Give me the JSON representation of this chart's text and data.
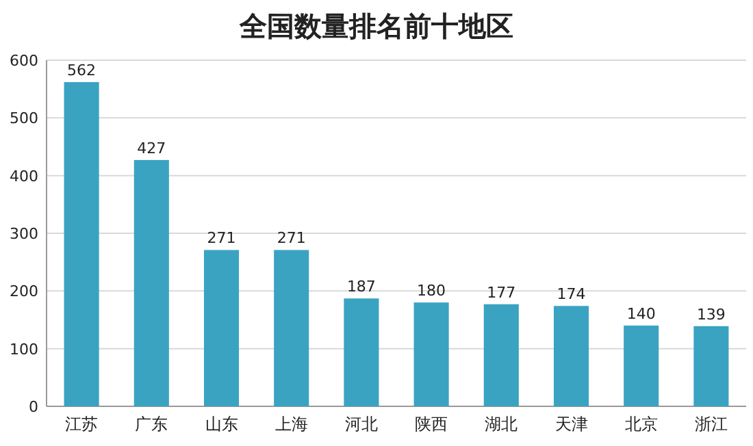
{
  "chart_data": {
    "type": "bar",
    "title": "全国数量排名前十地区",
    "categories": [
      "江苏",
      "广东",
      "山东",
      "上海",
      "河北",
      "陕西",
      "湖北",
      "天津",
      "北京",
      "浙江"
    ],
    "values": [
      562,
      427,
      271,
      271,
      187,
      180,
      177,
      174,
      140,
      139
    ],
    "color": "#3aa3c2",
    "ylim": [
      0,
      600
    ],
    "yticks": [
      0,
      100,
      200,
      300,
      400,
      500,
      600
    ],
    "grid": "y",
    "data_labels": true
  }
}
